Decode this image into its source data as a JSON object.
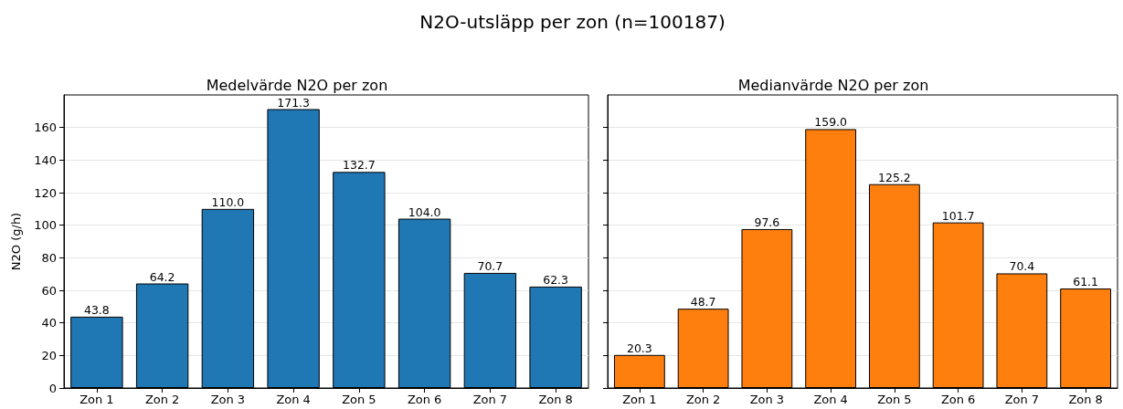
{
  "chart_data": [
    {
      "type": "bar",
      "title": "N2O-utsläpp per zon (n=100187)",
      "subtitle": "Medelvärde N2O per zon",
      "ylabel": "N2O (g/h)",
      "categories": [
        "Zon 1",
        "Zon 2",
        "Zon 3",
        "Zon 4",
        "Zon 5",
        "Zon 6",
        "Zon 7",
        "Zon 8"
      ],
      "values": [
        43.8,
        64.2,
        110.0,
        171.3,
        132.7,
        104.0,
        70.7,
        62.3
      ],
      "value_labels": [
        "43.8",
        "64.2",
        "110.0",
        "171.3",
        "132.7",
        "104.0",
        "70.7",
        "62.3"
      ],
      "color": "#1f77b4",
      "ylim": [
        0,
        180
      ],
      "yticks": [
        0,
        20,
        40,
        60,
        80,
        100,
        120,
        140,
        160
      ],
      "grid": "y"
    },
    {
      "type": "bar",
      "subtitle": "Medianvärde N2O per zon",
      "categories": [
        "Zon 1",
        "Zon 2",
        "Zon 3",
        "Zon 4",
        "Zon 5",
        "Zon 6",
        "Zon 7",
        "Zon 8"
      ],
      "values": [
        20.3,
        48.7,
        97.6,
        159.0,
        125.2,
        101.7,
        70.4,
        61.1
      ],
      "value_labels": [
        "20.3",
        "48.7",
        "97.6",
        "159.0",
        "125.2",
        "101.7",
        "70.4",
        "61.1"
      ],
      "color": "#ff7f0e",
      "ylim": [
        0,
        180
      ],
      "yticks": [
        0,
        20,
        40,
        60,
        80,
        100,
        120,
        140,
        160
      ],
      "grid": "y",
      "tick_labels": "x"
    }
  ]
}
